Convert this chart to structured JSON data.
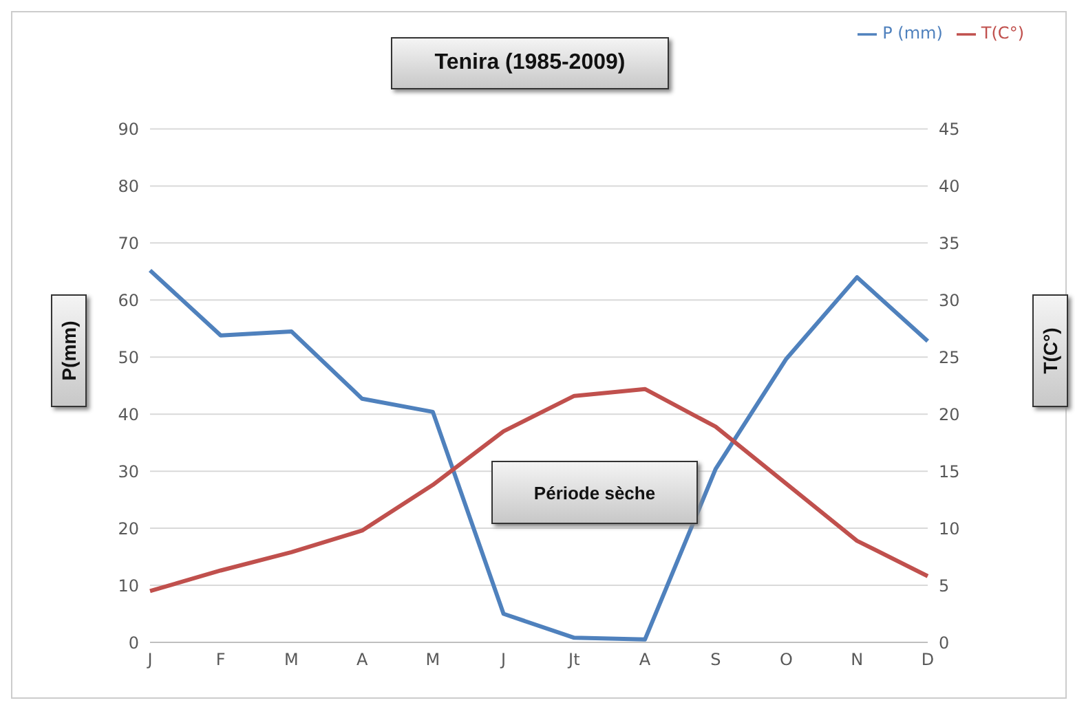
{
  "chart_data": {
    "type": "line",
    "title": "Tenira (1985-2009)",
    "ylabel": "P(mm)",
    "y2label": "T(C°)",
    "categories": [
      "J",
      "F",
      "M",
      "A",
      "M",
      "J",
      "Jt",
      "A",
      "S",
      "O",
      "N",
      "D"
    ],
    "series": [
      {
        "name": "P (mm)",
        "color": "#4f81bd",
        "values": [
          65.2,
          53.8,
          54.5,
          42.7,
          40.4,
          5,
          0.8,
          0.5,
          30.4,
          49.7,
          64,
          52.8
        ]
      },
      {
        "name": "T(C°)",
        "color": "#c0504d",
        "axis": "y2",
        "values": [
          4.5,
          6.3,
          7.9,
          9.8,
          13.8,
          18.5,
          21.6,
          22.2,
          18.9,
          13.9,
          8.9,
          5.8
        ]
      }
    ],
    "ylim": [
      0,
      90
    ],
    "yticks": [
      0,
      10,
      20,
      30,
      40,
      50,
      60,
      70,
      80,
      90
    ],
    "y2lim": [
      0,
      45
    ],
    "y2ticks": [
      0,
      5,
      10,
      15,
      20,
      25,
      30,
      35,
      40,
      45
    ],
    "grid": "y",
    "legend": "top right",
    "marker": "none",
    "line_style": "solid",
    "annotations": [
      "Période sèche"
    ]
  }
}
